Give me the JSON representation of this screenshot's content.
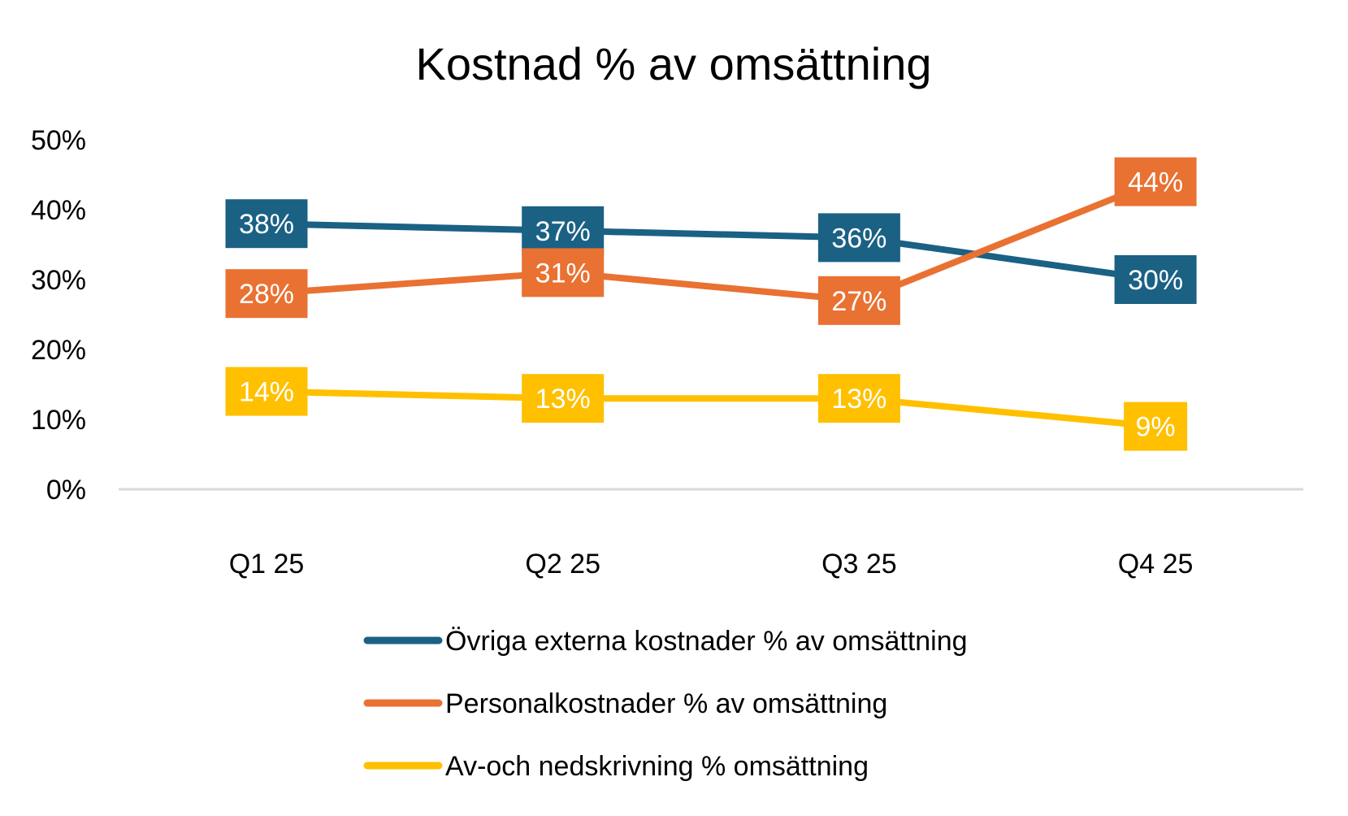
{
  "chart_data": {
    "type": "line",
    "title": "Kostnad % av omsättning",
    "xlabel": "",
    "ylabel": "",
    "categories": [
      "Q1 25",
      "Q2 25",
      "Q3 25",
      "Q4 25"
    ],
    "ylim": [
      0,
      50
    ],
    "yticks": [
      "0%",
      "10%",
      "20%",
      "30%",
      "40%",
      "50%"
    ],
    "grid": false,
    "legend_position": "bottom",
    "series": [
      {
        "name": "Övriga externa kostnader % av omsättning",
        "color": "#1A6184",
        "values": [
          38,
          37,
          36,
          30
        ],
        "labels": [
          "38%",
          "37%",
          "36%",
          "30%"
        ]
      },
      {
        "name": "Personalkostnader % av omsättning",
        "color": "#E97132",
        "values": [
          28,
          31,
          27,
          44
        ],
        "labels": [
          "28%",
          "31%",
          "27%",
          "44%"
        ]
      },
      {
        "name": "Av-och nedskrivning % omsättning",
        "color": "#FFC000",
        "values": [
          14,
          13,
          13,
          9
        ],
        "labels": [
          "14%",
          "13%",
          "13%",
          "9%"
        ]
      }
    ]
  }
}
